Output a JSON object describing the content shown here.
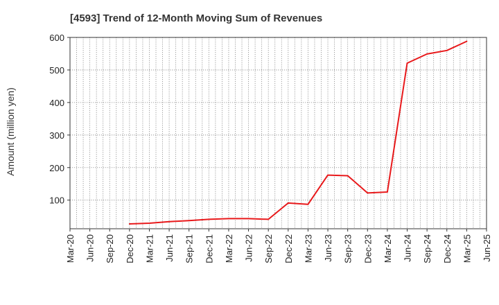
{
  "chart_data": {
    "type": "line",
    "title": "[4593]  Trend of 12-Month Moving Sum of Revenues",
    "xlabel": "",
    "ylabel": "Amount (million yen)",
    "categories": [
      "Mar-20",
      "Jun-20",
      "Sep-20",
      "Dec-20",
      "Mar-21",
      "Jun-21",
      "Sep-21",
      "Dec-21",
      "Mar-22",
      "Jun-22",
      "Sep-22",
      "Dec-22",
      "Mar-23",
      "Jun-23",
      "Sep-23",
      "Dec-23",
      "Mar-24",
      "Jun-24",
      "Sep-24",
      "Dec-24",
      "Mar-25",
      "Jun-25"
    ],
    "ylim": [
      12,
      600
    ],
    "yticks": [
      100,
      200,
      300,
      400,
      500,
      600
    ],
    "grid": true,
    "series": [
      {
        "color": "#e8191b",
        "values": [
          null,
          null,
          null,
          27,
          29,
          34,
          37,
          41,
          43,
          43,
          41,
          91,
          87,
          177,
          175,
          122,
          125,
          521,
          549,
          560,
          588,
          null
        ]
      }
    ]
  }
}
